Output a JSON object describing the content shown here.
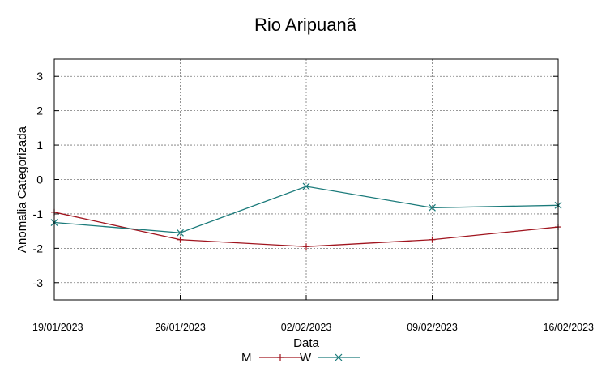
{
  "chart_data": {
    "type": "line",
    "title": "Rio Aripuanã",
    "xlabel": "Data",
    "ylabel": "Anomalia Categorizada",
    "categories": [
      "19/01/2023",
      "26/01/2023",
      "02/02/2023",
      "09/02/2023",
      "16/02/2023"
    ],
    "yticks": [
      3,
      2,
      1,
      0,
      -1,
      -2,
      -3
    ],
    "ylim": [
      -3.5,
      3.5
    ],
    "grid": true,
    "legend_position": "bottom",
    "series": [
      {
        "name": "M",
        "values": [
          -0.95,
          -1.75,
          -1.95,
          -1.75,
          -1.38
        ],
        "color": "#a0141e",
        "marker": "plus"
      },
      {
        "name": "W",
        "values": [
          -1.25,
          -1.55,
          -0.2,
          -0.82,
          -0.75
        ],
        "color": "#1a7a7a",
        "marker": "cross"
      }
    ]
  }
}
